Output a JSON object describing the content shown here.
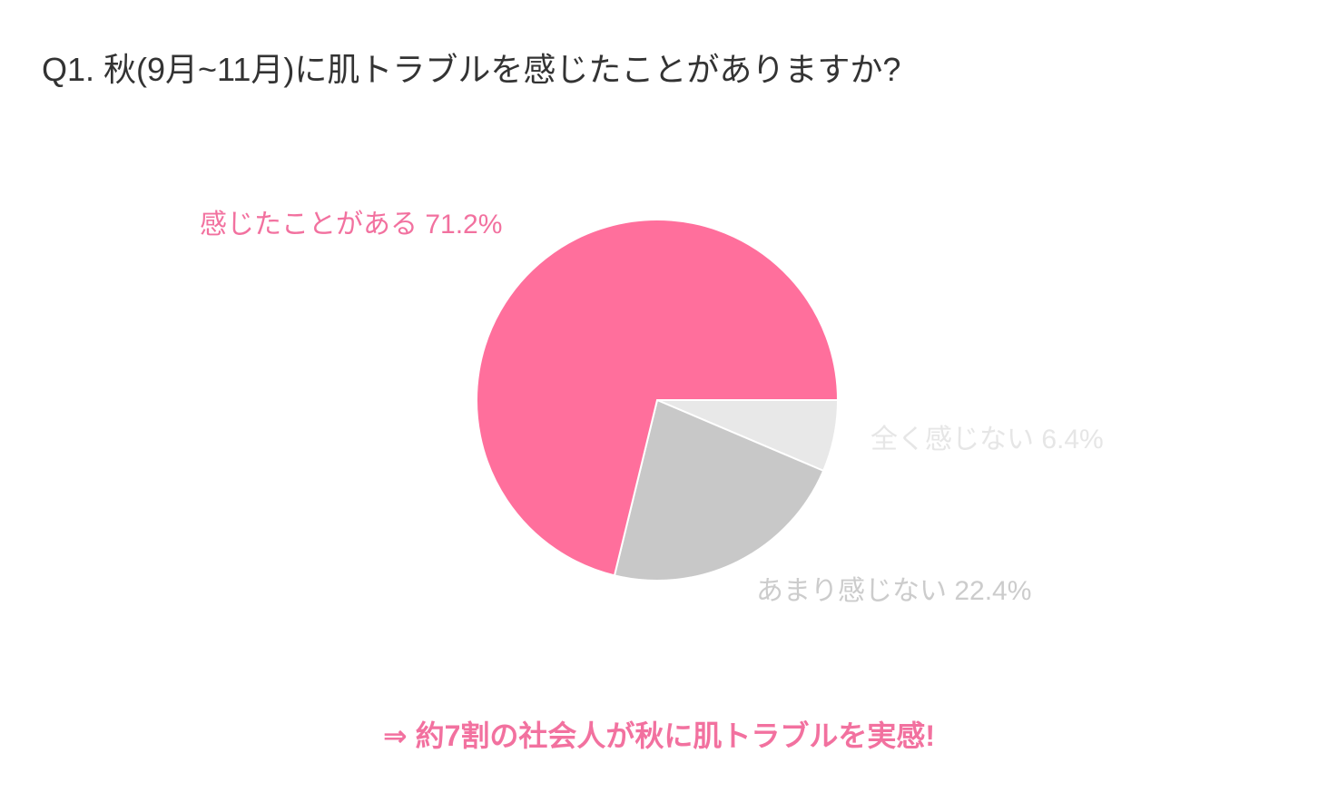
{
  "title": "Q1. 秋(9月~11月)に肌トラブルを感じたことがありますか?",
  "chart_data": {
    "type": "pie",
    "title": "Q1. 秋(9月~11月)に肌トラブルを感じたことがありますか?",
    "start_angle": "3 o'clock, clockwise",
    "slices": [
      {
        "label": "全く感じない",
        "value": 6.4,
        "display": "全く感じない 6.4%",
        "color": "#E8E8E8",
        "label_color": "#E6E6E6"
      },
      {
        "label": "あまり感じない",
        "value": 22.4,
        "display": "あまり感じない 22.4%",
        "color": "#C8C8C8",
        "label_color": "#CCCCCC"
      },
      {
        "label": "感じたことがある",
        "value": 71.2,
        "display": "感じたことがある 71.2%",
        "color": "#FF6F9C",
        "label_color": "#F2719F"
      }
    ]
  },
  "conclusion": "⇒ 約7割の社会人が秋に肌トラブルを実感!",
  "accent_color": "#F2719F"
}
